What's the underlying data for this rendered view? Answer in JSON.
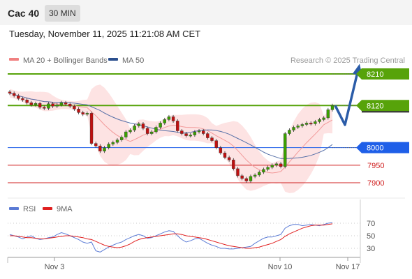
{
  "header": {
    "symbol": "Cac 40",
    "timeframe": "30 MIN"
  },
  "timestamp": "Tuesday, November 11, 2025 11:21:08 AM CET",
  "legend": {
    "bollinger": {
      "label": "MA 20 + Bollinger Bands",
      "color": "#f08080"
    },
    "ma50": {
      "label": "MA 50",
      "color": "#2b4f8e"
    },
    "rsi": {
      "label": "RSI",
      "color": "#5b7bd5"
    },
    "rsi_ma": {
      "label": "9MA",
      "color": "#e02020"
    }
  },
  "credit": "Research © 2025 Trading Central",
  "chart_data": {
    "type": "candlestick",
    "price_range": [
      7880,
      8225
    ],
    "x_ticks": [
      "Nov 3",
      "Nov 10",
      "Nov 17"
    ],
    "levels": [
      {
        "label": "8210",
        "value": 8210,
        "kind": "resistance",
        "color": "#57a30a"
      },
      {
        "label": "8120",
        "value": 8120,
        "kind": "pivot",
        "color": "#57a30a"
      },
      {
        "label": "8000",
        "value": 8000,
        "kind": "support",
        "color": "#1f5fe8"
      },
      {
        "label": "7950",
        "value": 7950,
        "kind": "support",
        "color": "#d02020"
      },
      {
        "label": "7900",
        "value": 7900,
        "kind": "support",
        "color": "#d02020"
      }
    ],
    "close_series": [
      8155,
      8148,
      8140,
      8136,
      8128,
      8122,
      8126,
      8115,
      8112,
      8125,
      8118,
      8122,
      8128,
      8124,
      8118,
      8110,
      8100,
      8095,
      8098,
      8012,
      8005,
      7990,
      8000,
      8010,
      8015,
      8022,
      8030,
      8045,
      8050,
      8062,
      8068,
      8055,
      8040,
      8045,
      8058,
      8070,
      8080,
      8088,
      8076,
      8048,
      8040,
      8034,
      8036,
      8045,
      8048,
      8040,
      8028,
      8020,
      8000,
      7985,
      7972,
      7965,
      7940,
      7920,
      7912,
      7905,
      7918,
      7922,
      7930,
      7938,
      7944,
      7950,
      7954,
      7946,
      8040,
      8050,
      8058,
      8062,
      8066,
      8070,
      8068,
      8074,
      8080,
      8085,
      8108,
      8120
    ],
    "forecast_path": [
      8120,
      8065,
      8215
    ],
    "rsi": {
      "y_ticks": [
        70,
        50,
        30
      ],
      "range": [
        10,
        90
      ],
      "rsi_values": [
        52,
        50,
        48,
        45,
        48,
        50,
        46,
        44,
        45,
        47,
        48,
        52,
        55,
        53,
        50,
        47,
        44,
        40,
        38,
        40,
        26,
        24,
        28,
        32,
        35,
        38,
        40,
        44,
        47,
        50,
        52,
        50,
        46,
        47,
        50,
        53,
        56,
        58,
        57,
        50,
        44,
        40,
        42,
        45,
        46,
        42,
        38,
        35,
        33,
        30,
        30,
        29,
        29,
        30,
        31,
        32,
        33,
        38,
        42,
        46,
        48,
        48,
        50,
        52,
        62,
        66,
        68,
        68,
        66,
        67,
        68,
        67,
        66,
        68,
        70,
        71
      ],
      "ma_values": [
        50,
        50,
        49,
        48,
        47,
        47,
        46,
        45,
        45,
        46,
        47,
        48,
        49,
        50,
        50,
        49,
        48,
        47,
        45,
        44,
        41,
        38,
        35,
        33,
        32,
        31,
        32,
        34,
        37,
        41,
        44,
        46,
        47,
        48,
        49,
        50,
        51,
        52,
        53,
        53,
        52,
        50,
        49,
        48,
        47,
        46,
        44,
        42,
        40,
        38,
        36,
        34,
        33,
        32,
        31,
        30,
        30,
        31,
        32,
        34,
        36,
        38,
        41,
        44,
        49,
        53,
        56,
        59,
        62,
        64,
        66,
        67,
        67,
        67,
        68,
        69
      ]
    }
  }
}
